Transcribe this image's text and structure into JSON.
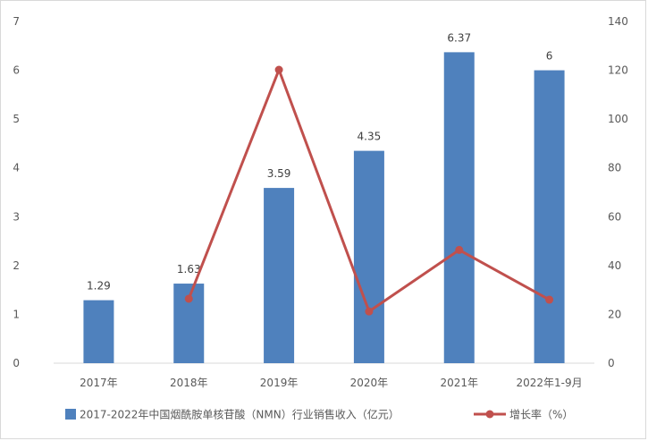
{
  "chart_data": {
    "type": "bar",
    "categories": [
      "2017年",
      "2018年",
      "2019年",
      "2020年",
      "2021年",
      "2022年1-9月"
    ],
    "series": [
      {
        "name": "2017-2022年中国烟酰胺单核苷酸（NMN）行业销售收入（亿元）",
        "type": "bar",
        "axis": "left",
        "color": "#4f81bd",
        "values": [
          1.29,
          1.63,
          3.59,
          4.35,
          6.37,
          6
        ],
        "labels": [
          "1.29",
          "1.63",
          "3.59",
          "4.35",
          "6.37",
          "6"
        ]
      },
      {
        "name": "增长率（%）",
        "type": "line",
        "axis": "right",
        "color": "#c0504d",
        "values": [
          null,
          26.4,
          120.2,
          21.2,
          46.4,
          26
        ]
      }
    ],
    "y_left": {
      "min": 0,
      "max": 7,
      "step": 1,
      "ticks": [
        "0",
        "1",
        "2",
        "3",
        "4",
        "5",
        "6",
        "7"
      ]
    },
    "y_right": {
      "min": 0,
      "max": 140,
      "step": 20,
      "ticks": [
        "0",
        "20",
        "40",
        "60",
        "80",
        "100",
        "120",
        "140"
      ]
    },
    "grid": false,
    "legend_position": "bottom"
  }
}
